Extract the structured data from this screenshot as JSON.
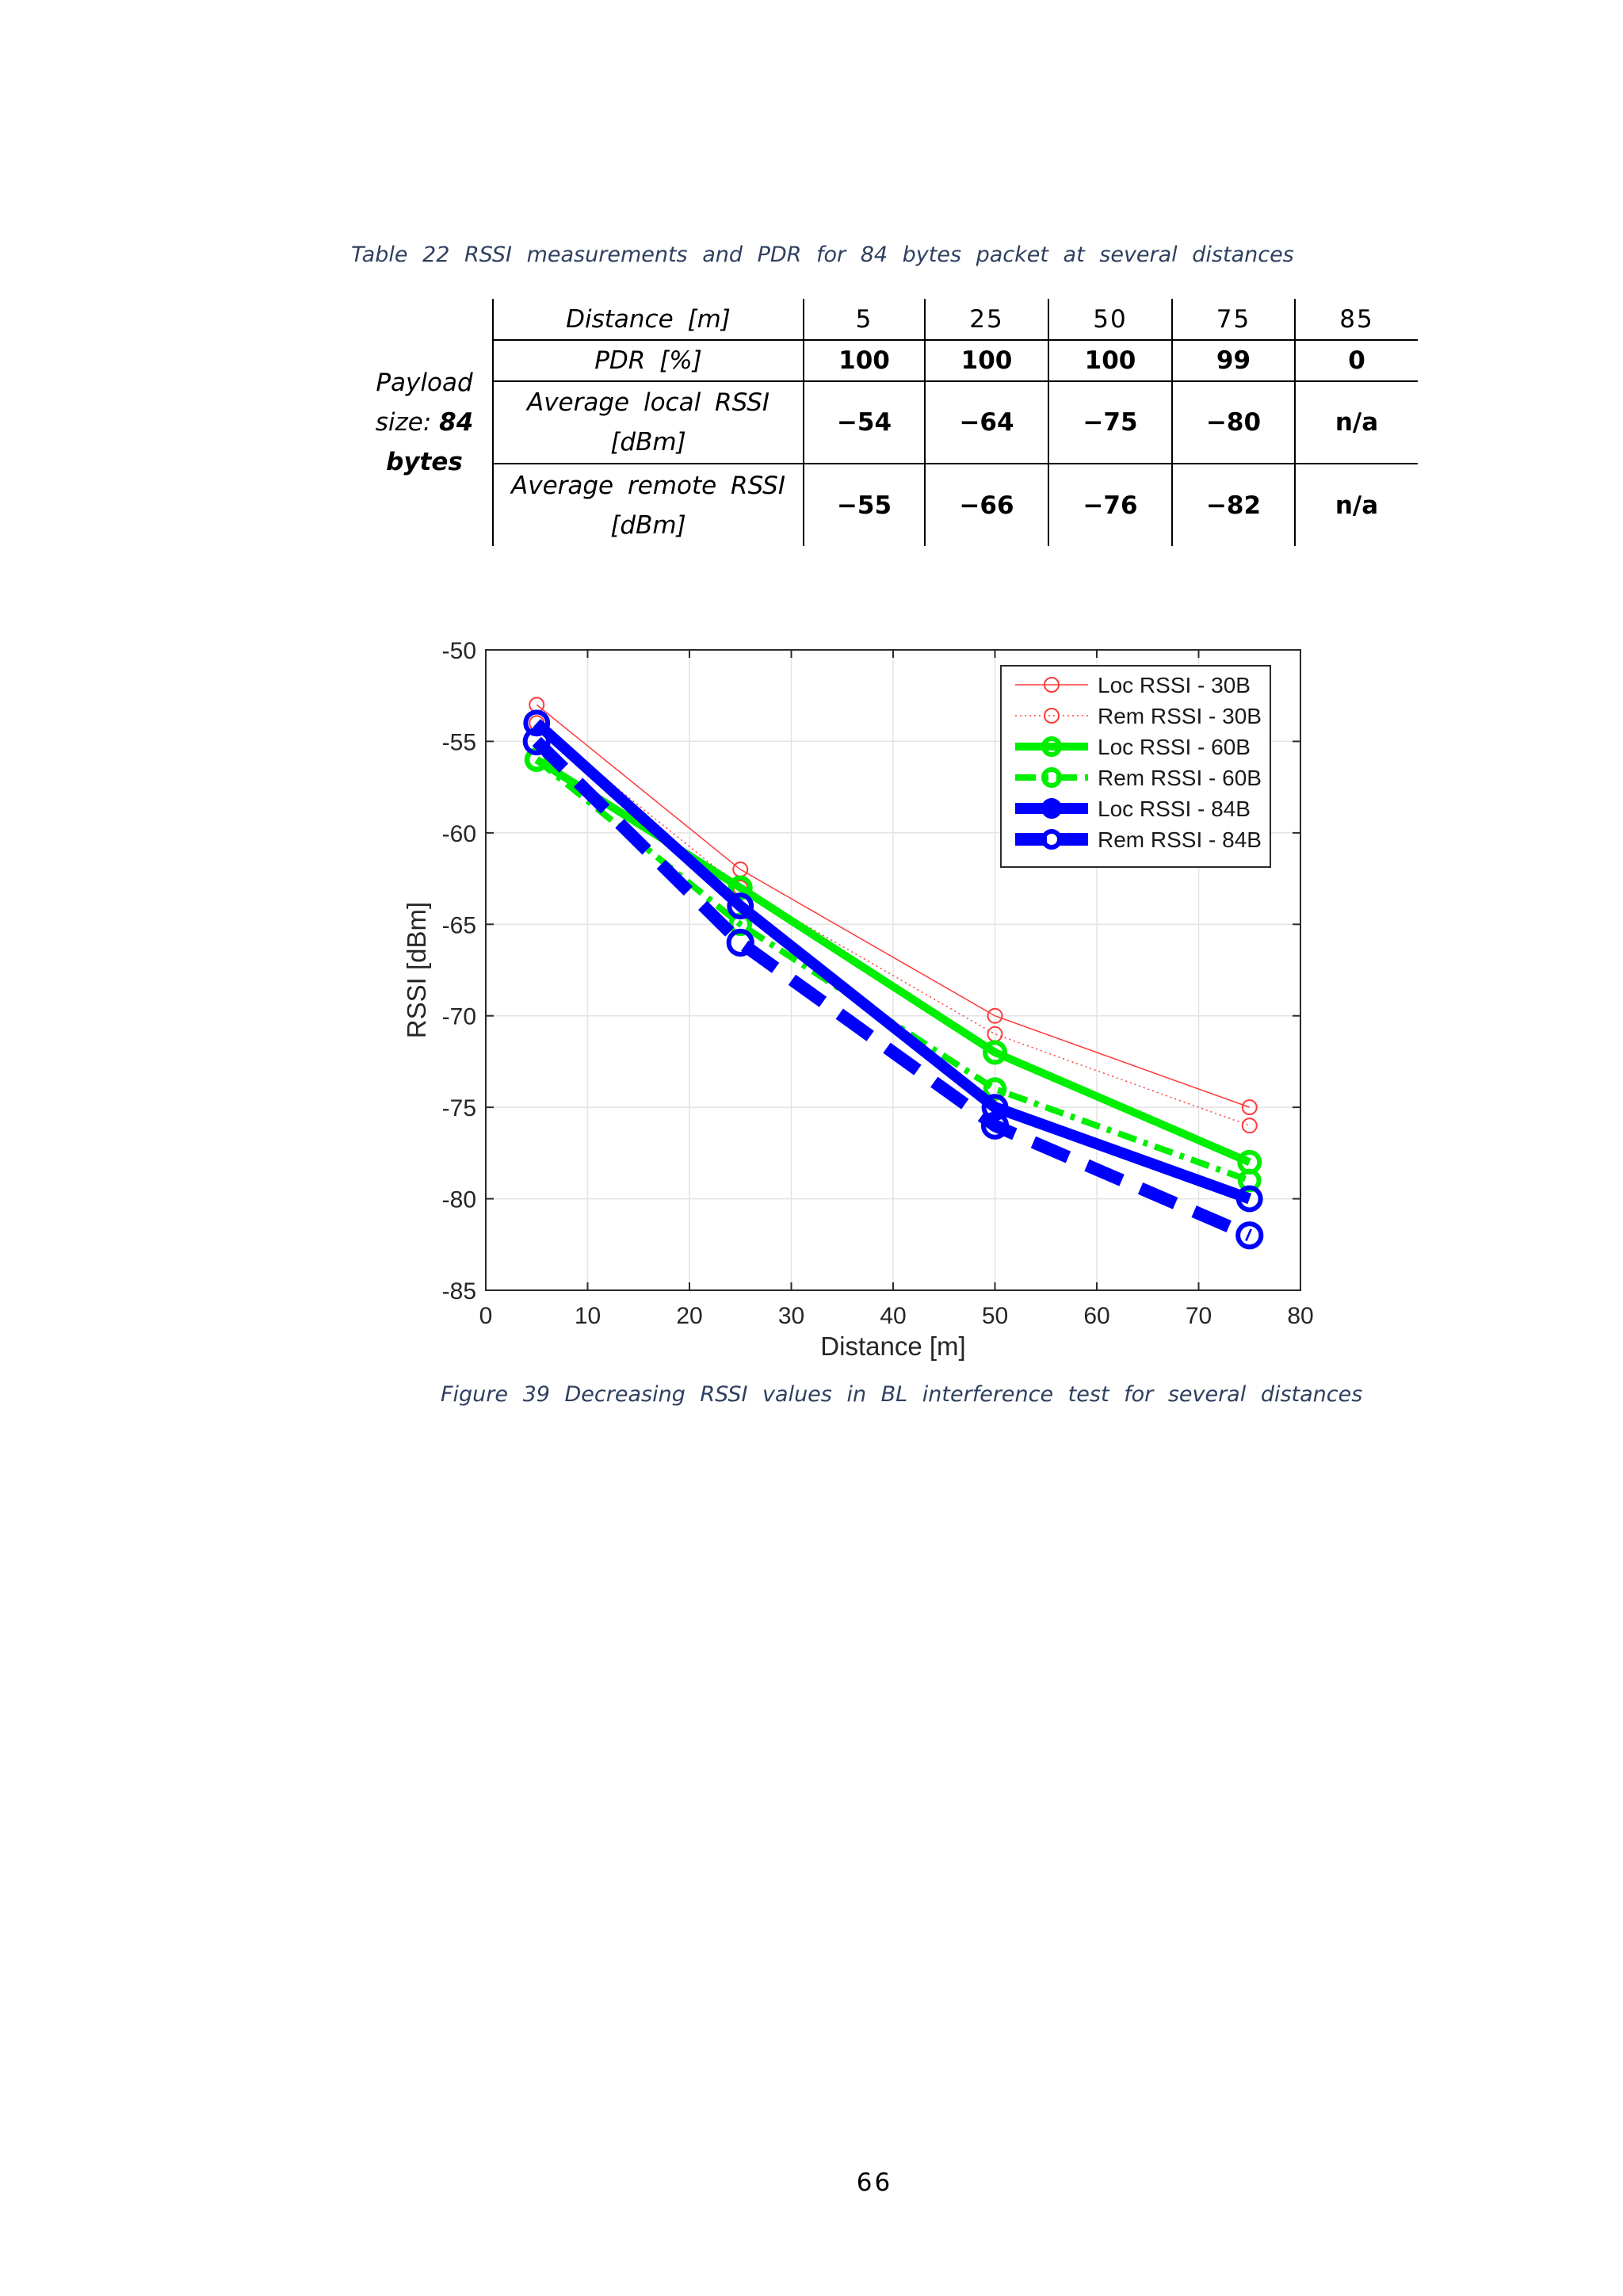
{
  "table": {
    "caption": "Table 22 RSSI measurements and PDR for 84 bytes packet at several distances",
    "payload_label_line1": "Payload",
    "payload_label_line2_prefix": "size:",
    "payload_label_line2_value": "84",
    "payload_label_line3": "bytes",
    "header_label": "Distance [m]",
    "distances": [
      "5",
      "25",
      "50",
      "75",
      "85"
    ],
    "rows": [
      {
        "label_line1": "PDR [%]",
        "label_line2": "",
        "values": [
          "100",
          "100",
          "100",
          "99",
          "0"
        ]
      },
      {
        "label_line1": "Average local RSSI",
        "label_line2": "[dBm]",
        "values": [
          "−54",
          "−64",
          "−75",
          "−80",
          "n/a"
        ]
      },
      {
        "label_line1": "Average remote RSSI",
        "label_line2": "[dBm]",
        "values": [
          "−55",
          "−66",
          "−76",
          "−82",
          "n/a"
        ]
      }
    ]
  },
  "chart_data": {
    "type": "line",
    "title": "",
    "xlabel": "Distance [m]",
    "ylabel": "RSSI [dBm]",
    "xlim": [
      0,
      80
    ],
    "ylim": [
      -85,
      -50
    ],
    "xticks": [
      0,
      10,
      20,
      30,
      40,
      50,
      60,
      70,
      80
    ],
    "yticks": [
      -50,
      -55,
      -60,
      -65,
      -70,
      -75,
      -80,
      -85
    ],
    "grid": true,
    "legend_position": "top-right",
    "x": [
      5,
      25,
      50,
      75
    ],
    "series": [
      {
        "name": "Loc RSSI - 30B",
        "values": [
          -53,
          -62,
          -70,
          -75
        ],
        "color": "#ff3b3b",
        "style": "solid",
        "width": 1.5
      },
      {
        "name": "Rem RSSI - 30B",
        "values": [
          -54,
          -63,
          -71,
          -76
        ],
        "color": "#ff3b3b",
        "style": "dotted",
        "width": 1.5
      },
      {
        "name": "Loc RSSI - 60B",
        "values": [
          -56,
          -63,
          -72,
          -78
        ],
        "color": "#00ee00",
        "style": "solid",
        "width": 10
      },
      {
        "name": "Rem RSSI - 60B",
        "values": [
          -56,
          -65,
          -74,
          -79
        ],
        "color": "#00ee00",
        "style": "dashdot",
        "width": 8
      },
      {
        "name": "Loc RSSI - 84B",
        "values": [
          -54,
          -64,
          -75,
          -80
        ],
        "color": "#0000ff",
        "style": "solid",
        "width": 14
      },
      {
        "name": "Rem RSSI - 84B",
        "values": [
          -55,
          -66,
          -76,
          -82
        ],
        "color": "#0000ff",
        "style": "dashed",
        "width": 16
      }
    ]
  },
  "figure_caption": "Figure 39 Decreasing RSSI values in BL interference test for several distances",
  "page_number": "66"
}
